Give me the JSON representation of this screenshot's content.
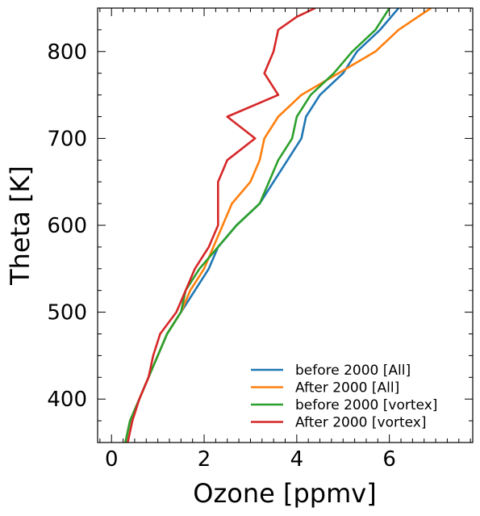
{
  "chart_data": {
    "type": "line",
    "title": "",
    "xlabel": "Ozone [ppmv]",
    "ylabel": "Theta [K]",
    "xlim": [
      -0.3,
      7.8
    ],
    "ylim": [
      350,
      850
    ],
    "xticks": [
      0,
      2,
      4,
      6
    ],
    "xtick_labels": [
      "0",
      "2",
      "4",
      "6"
    ],
    "yticks": [
      400,
      500,
      600,
      700,
      800
    ],
    "ytick_labels": [
      "400",
      "500",
      "600",
      "700",
      "800"
    ],
    "grid": false,
    "legend_position": "lower-right",
    "series": [
      {
        "name": "before 2000 [All]",
        "color": "#1f77b4",
        "x": [
          0.3,
          0.4,
          0.6,
          0.8,
          1.0,
          1.2,
          1.5,
          1.8,
          2.1,
          2.3,
          2.7,
          3.2,
          3.5,
          3.8,
          4.1,
          4.2,
          4.5,
          5.0,
          5.3,
          5.8,
          6.2
        ],
        "y": [
          350,
          375,
          400,
          425,
          450,
          475,
          500,
          525,
          550,
          575,
          600,
          625,
          650,
          675,
          700,
          725,
          750,
          775,
          800,
          825,
          850
        ]
      },
      {
        "name": "After 2000 [All]",
        "color": "#ff7f0e",
        "x": [
          0.3,
          0.4,
          0.6,
          0.8,
          1.0,
          1.2,
          1.5,
          1.7,
          2.0,
          2.2,
          2.4,
          2.6,
          3.0,
          3.2,
          3.3,
          3.6,
          4.1,
          4.9,
          5.7,
          6.2,
          6.9
        ],
        "y": [
          350,
          375,
          400,
          425,
          450,
          475,
          500,
          525,
          550,
          575,
          600,
          625,
          650,
          675,
          700,
          725,
          750,
          775,
          800,
          825,
          850
        ]
      },
      {
        "name": "before 2000 [vortex]",
        "color": "#2ca02c",
        "x": [
          0.3,
          0.4,
          0.6,
          0.8,
          1.0,
          1.2,
          1.5,
          1.6,
          1.9,
          2.3,
          2.7,
          3.2,
          3.4,
          3.6,
          3.9,
          4.0,
          4.3,
          4.8,
          5.2,
          5.7,
          6.0
        ],
        "y": [
          350,
          375,
          400,
          425,
          450,
          475,
          500,
          525,
          550,
          575,
          600,
          625,
          650,
          675,
          700,
          725,
          750,
          775,
          800,
          825,
          850
        ]
      },
      {
        "name": "After 2000 [vortex]",
        "color": "#d62728",
        "x": [
          0.35,
          0.45,
          0.6,
          0.8,
          0.9,
          1.05,
          1.4,
          1.6,
          1.8,
          2.1,
          2.3,
          2.3,
          2.3,
          2.5,
          3.1,
          2.5,
          3.6,
          3.3,
          3.5,
          3.6,
          4.0,
          4.4
        ],
        "y": [
          350,
          375,
          400,
          425,
          450,
          475,
          500,
          525,
          550,
          575,
          600,
          625,
          650,
          675,
          700,
          725,
          750,
          775,
          800,
          825,
          840,
          850
        ]
      }
    ]
  }
}
